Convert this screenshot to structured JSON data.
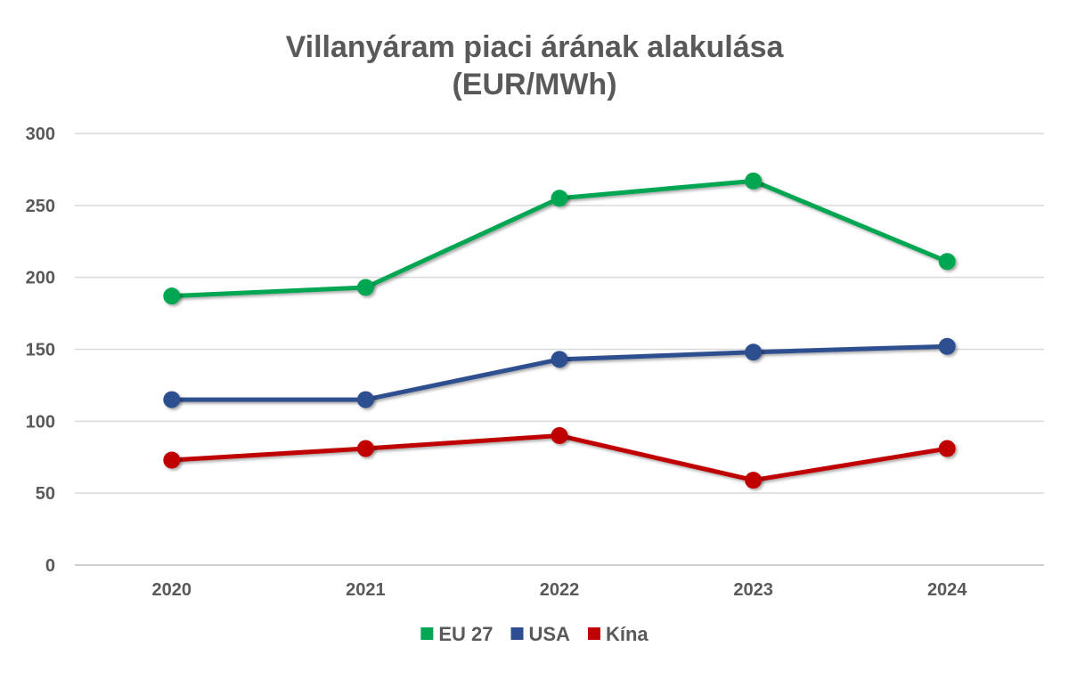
{
  "chart_data": {
    "type": "line",
    "title": "Villanyáram piaci árának alakulása",
    "subtitle": "(EUR/MWh)",
    "xlabel": "",
    "ylabel": "",
    "categories": [
      "2020",
      "2021",
      "2022",
      "2023",
      "2024"
    ],
    "ylim": [
      0,
      300
    ],
    "yticks": [
      0,
      50,
      100,
      150,
      200,
      250,
      300
    ],
    "grid": true,
    "legend_position": "bottom",
    "series": [
      {
        "name": "EU 27",
        "color": "#00A651",
        "values": [
          187,
          193,
          255,
          267,
          211
        ]
      },
      {
        "name": "USA",
        "color": "#2E4F8F",
        "values": [
          115,
          115,
          143,
          148,
          152
        ]
      },
      {
        "name": "Kína",
        "color": "#C00000",
        "values": [
          73,
          81,
          90,
          59,
          81
        ]
      }
    ]
  }
}
